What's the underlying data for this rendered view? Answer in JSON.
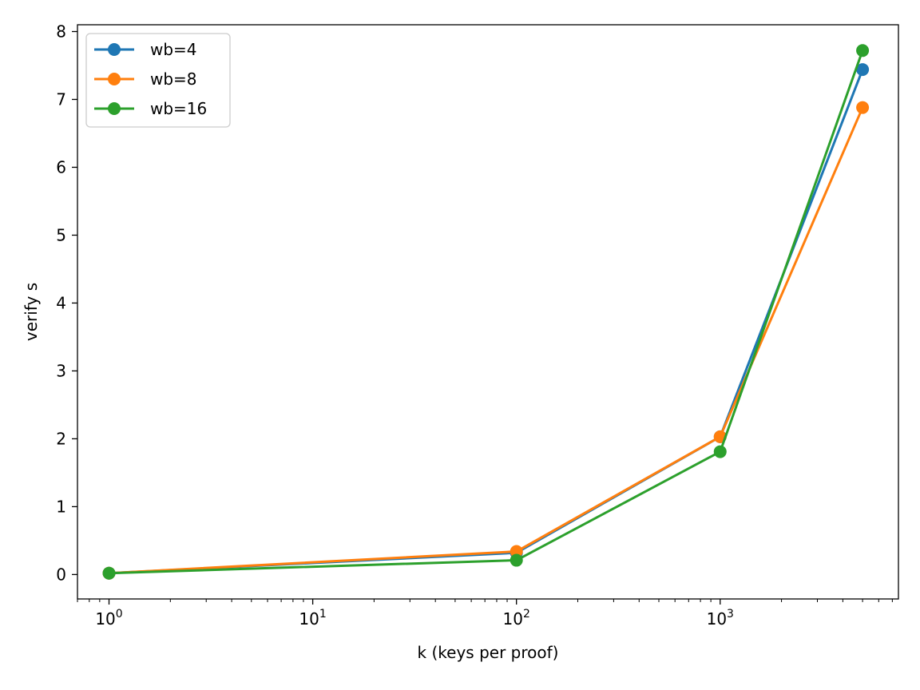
{
  "chart_data": {
    "type": "line",
    "title": "",
    "xlabel": "k (keys per proof)",
    "ylabel": "verify s",
    "xscale": "log",
    "xlim": [
      0.7,
      7500
    ],
    "ylim": [
      -0.36,
      8.1
    ],
    "xticks": [
      {
        "base": "10",
        "exp": "0",
        "value": 1
      },
      {
        "base": "10",
        "exp": "1",
        "value": 10
      },
      {
        "base": "10",
        "exp": "2",
        "value": 100
      },
      {
        "base": "10",
        "exp": "3",
        "value": 1000
      }
    ],
    "yticks": [
      "0",
      "1",
      "2",
      "3",
      "4",
      "5",
      "6",
      "7",
      "8"
    ],
    "x": [
      1,
      100,
      1000,
      5000
    ],
    "series": [
      {
        "name": "wb=4",
        "color": "#1f77b4",
        "values": [
          0.02,
          0.32,
          2.03,
          7.44
        ]
      },
      {
        "name": "wb=8",
        "color": "#ff7f0e",
        "values": [
          0.02,
          0.34,
          2.03,
          6.88
        ]
      },
      {
        "name": "wb=16",
        "color": "#2ca02c",
        "values": [
          0.02,
          0.21,
          1.81,
          7.72
        ]
      }
    ],
    "grid": false,
    "legend_position": "upper left"
  }
}
